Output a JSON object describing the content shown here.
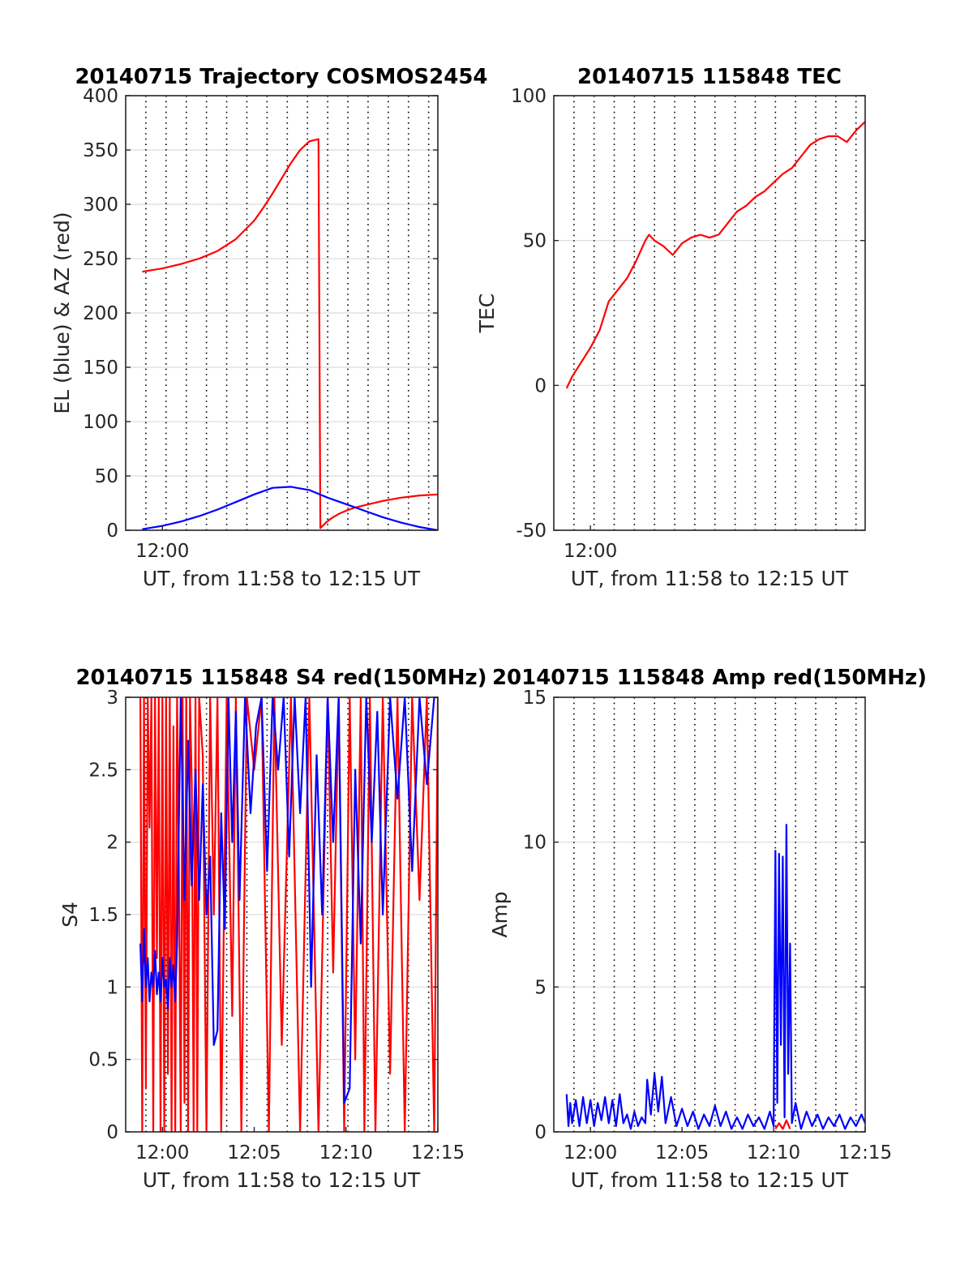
{
  "figure": {
    "colors": {
      "blue": "#0000ff",
      "red": "#ff0000",
      "axis": "#262626",
      "grid": "#dcdcdc",
      "vgrid": "#000000"
    }
  },
  "chart_data": [
    {
      "type": "line",
      "title": "20140715 Trajectory COSMOS2454",
      "xlabel": "UT, from 11:58 to 12:15 UT",
      "ylabel": "EL (blue) & AZ (red)",
      "x_unit": "minutes after 11:58 UT",
      "xlim": [
        0,
        17
      ],
      "ylim": [
        0,
        400
      ],
      "yticks": [
        0,
        50,
        100,
        150,
        200,
        250,
        300,
        350,
        400
      ],
      "xticks": [
        {
          "x": 2,
          "label": "12:00"
        }
      ],
      "minor_x": [
        1.1,
        2.2,
        3.3,
        4.4,
        5.5,
        6.6,
        7.7,
        8.8,
        9.9,
        11.0,
        12.1,
        13.2,
        14.3,
        15.4,
        16.5
      ],
      "series": [
        {
          "name": "AZ (red)",
          "color": "#ff0000",
          "x": [
            0.9,
            2,
            3,
            4,
            5,
            6,
            7,
            7.5,
            8,
            8.5,
            9,
            9.5,
            10,
            10.5,
            10.6,
            10.9,
            11.2,
            11.6,
            12,
            12.5,
            13,
            14,
            15,
            16,
            17
          ],
          "y": [
            238,
            241,
            245,
            250,
            257,
            268,
            285,
            297,
            310,
            324,
            338,
            350,
            358,
            360,
            2,
            7,
            11,
            15,
            18,
            21,
            23,
            27,
            30,
            32,
            33
          ]
        },
        {
          "name": "EL (blue)",
          "color": "#0000ff",
          "x": [
            0.9,
            2,
            3,
            4,
            5,
            6,
            7,
            8,
            9,
            10,
            11,
            12,
            13,
            14,
            15,
            16,
            17
          ],
          "y": [
            1,
            4,
            8,
            13,
            19,
            26,
            33,
            39,
            40,
            37,
            30,
            24,
            18,
            12,
            7,
            3,
            0
          ]
        }
      ]
    },
    {
      "type": "line",
      "title": "20140715 115848 TEC",
      "xlabel": "UT, from 11:58 to 12:15 UT",
      "ylabel": "TEC",
      "x_unit": "minutes after 11:58 UT",
      "xlim": [
        0,
        17
      ],
      "ylim": [
        -50,
        100
      ],
      "yticks": [
        -50,
        0,
        50,
        100
      ],
      "xticks": [
        {
          "x": 2,
          "label": "12:00"
        }
      ],
      "minor_x": [
        1.1,
        2.2,
        3.3,
        4.4,
        5.5,
        6.6,
        7.7,
        8.8,
        9.9,
        11.0,
        12.1,
        13.2,
        14.3,
        15.4,
        16.5
      ],
      "series": [
        {
          "name": "TEC",
          "color": "#ff0000",
          "x": [
            0.7,
            1.0,
            1.5,
            2.0,
            2.5,
            3.0,
            3.5,
            4.0,
            4.5,
            5.0,
            5.2,
            5.5,
            6.0,
            6.5,
            7.0,
            7.5,
            8.0,
            8.5,
            9.0,
            9.5,
            10.0,
            10.5,
            11.0,
            11.5,
            12.0,
            12.5,
            13.0,
            13.5,
            14.0,
            14.5,
            15.0,
            15.5,
            16.0,
            16.5,
            17.0
          ],
          "y": [
            -1,
            3,
            8,
            13,
            19,
            29,
            33,
            37,
            43,
            50,
            52,
            50,
            48,
            45,
            49,
            51,
            52,
            51,
            52,
            56,
            60,
            62,
            65,
            67,
            70,
            73,
            75,
            79,
            83,
            85,
            86,
            86,
            84,
            88,
            91
          ]
        }
      ]
    },
    {
      "type": "line",
      "title": "20140715 115848 S4 red(150MHz)",
      "xlabel": "UT, from 11:58 to 12:15 UT",
      "ylabel": "S4",
      "x_unit": "minutes after 11:58 UT",
      "xlim": [
        0,
        17
      ],
      "ylim": [
        0,
        3
      ],
      "yticks": [
        0,
        0.5,
        1,
        1.5,
        2,
        2.5,
        3
      ],
      "xticks": [
        {
          "x": 2,
          "label": "12:00"
        },
        {
          "x": 7,
          "label": "12:05"
        },
        {
          "x": 12,
          "label": "12:10"
        },
        {
          "x": 17,
          "label": "12:15"
        }
      ],
      "minor_x": [
        1.1,
        2.2,
        3.3,
        4.4,
        5.5,
        6.6,
        7.7,
        8.8,
        9.9,
        11.0,
        12.1,
        13.2,
        14.3,
        15.4,
        16.5
      ],
      "series": [
        {
          "name": "red",
          "color": "#ff0000",
          "x": [
            0.8,
            0.9,
            1.0,
            1.1,
            1.2,
            1.3,
            1.4,
            1.5,
            1.6,
            1.7,
            1.8,
            1.9,
            2.0,
            2.1,
            2.2,
            2.3,
            2.4,
            2.5,
            2.6,
            2.7,
            2.8,
            2.9,
            3.0,
            3.1,
            3.2,
            3.3,
            3.4,
            3.5,
            3.6,
            3.7,
            3.8,
            3.9,
            4.0,
            4.2,
            4.4,
            4.6,
            4.8,
            5.0,
            5.2,
            5.5,
            5.8,
            6.0,
            6.3,
            6.6,
            7.0,
            7.4,
            7.8,
            8.1,
            8.5,
            9.0,
            9.5,
            10.0,
            10.5,
            11.0,
            11.3,
            11.6,
            11.9,
            12.2,
            12.5,
            12.8,
            13.0,
            13.3,
            13.6,
            14.0,
            14.4,
            14.8,
            15.2,
            15.6,
            16.0,
            16.4,
            16.8,
            17.0
          ],
          "y": [
            3,
            0,
            3,
            0.3,
            3,
            2.1,
            3,
            0,
            3,
            1.2,
            3,
            0,
            3,
            0,
            3,
            0.4,
            3,
            0,
            2.8,
            0,
            3,
            1.8,
            0,
            3,
            0.2,
            3,
            0,
            3,
            2.4,
            0,
            3,
            0,
            3,
            2.6,
            0,
            3,
            1.5,
            3,
            0,
            3,
            0.8,
            3,
            0,
            3,
            2.5,
            3,
            0,
            3,
            0.6,
            3,
            0,
            3,
            0,
            3,
            1.1,
            3,
            0,
            3,
            0.5,
            3,
            0,
            3,
            0,
            3,
            0.4,
            3,
            0,
            3,
            1.6,
            3,
            0,
            3
          ]
        },
        {
          "name": "blue",
          "color": "#0000ff",
          "x": [
            0.8,
            0.9,
            1.0,
            1.1,
            1.2,
            1.3,
            1.4,
            1.5,
            1.6,
            1.7,
            1.8,
            1.9,
            2.0,
            2.1,
            2.2,
            2.3,
            2.4,
            2.5,
            2.6,
            2.7,
            2.8,
            3.0,
            3.2,
            3.4,
            3.6,
            3.8,
            4.0,
            4.2,
            4.4,
            4.6,
            4.8,
            5.0,
            5.2,
            5.4,
            5.6,
            5.8,
            6.0,
            6.2,
            6.5,
            6.8,
            7.1,
            7.4,
            7.7,
            8.0,
            8.3,
            8.6,
            8.9,
            9.2,
            9.5,
            9.8,
            10.1,
            10.4,
            10.7,
            11.0,
            11.3,
            11.6,
            11.9,
            12.2,
            12.5,
            12.8,
            13.1,
            13.4,
            13.7,
            14.0,
            14.4,
            14.8,
            15.2,
            15.6,
            16.0,
            16.4,
            16.8,
            17.0
          ],
          "y": [
            1.3,
            0.9,
            1.4,
            1.0,
            1.2,
            0.9,
            1.1,
            1.0,
            1.25,
            0.95,
            1.1,
            0.9,
            1.2,
            1.0,
            1.05,
            0.85,
            1.2,
            1.0,
            1.15,
            0.9,
            1.3,
            3.0,
            1.6,
            2.7,
            1.7,
            2.5,
            1.6,
            2.4,
            1.5,
            1.9,
            0.6,
            0.7,
            2.2,
            1.4,
            3.0,
            2.0,
            2.9,
            1.6,
            3.0,
            2.2,
            2.8,
            3.0,
            1.8,
            3.0,
            2.5,
            3.0,
            1.9,
            3.0,
            2.2,
            3.0,
            1.0,
            2.6,
            1.5,
            3.0,
            2.0,
            3.0,
            0.2,
            0.3,
            2.5,
            1.3,
            3.0,
            2.0,
            2.9,
            1.5,
            3.0,
            2.3,
            3.0,
            1.8,
            3.0,
            2.4,
            3.0,
            3.0
          ]
        }
      ]
    },
    {
      "type": "line",
      "title": "20140715 115848 Amp red(150MHz)",
      "xlabel": "UT, from 11:58 to 12:15 UT",
      "ylabel": "Amp",
      "x_unit": "minutes after 11:58 UT",
      "xlim": [
        0,
        17
      ],
      "ylim": [
        0,
        15
      ],
      "yticks": [
        0,
        5,
        10,
        15
      ],
      "xticks": [
        {
          "x": 2,
          "label": "12:00"
        },
        {
          "x": 7,
          "label": "12:05"
        },
        {
          "x": 12,
          "label": "12:10"
        },
        {
          "x": 17,
          "label": "12:15"
        }
      ],
      "minor_x": [
        1.1,
        2.2,
        3.3,
        4.4,
        5.5,
        6.6,
        7.7,
        8.8,
        9.9,
        11.0,
        12.1,
        13.2,
        14.3,
        15.4,
        16.5
      ],
      "series": [
        {
          "name": "red",
          "color": "#ff0000",
          "x": [
            12.1,
            12.3,
            12.5,
            12.7,
            12.9
          ],
          "y": [
            0.1,
            0.3,
            0.1,
            0.4,
            0.1
          ]
        },
        {
          "name": "blue",
          "color": "#0000ff",
          "x": [
            0.7,
            0.8,
            0.9,
            1.0,
            1.2,
            1.4,
            1.6,
            1.8,
            2.0,
            2.2,
            2.4,
            2.6,
            2.8,
            3.0,
            3.2,
            3.4,
            3.6,
            3.8,
            4.0,
            4.2,
            4.4,
            4.6,
            4.8,
            5.0,
            5.1,
            5.3,
            5.5,
            5.7,
            5.9,
            6.1,
            6.4,
            6.7,
            7.0,
            7.3,
            7.6,
            7.9,
            8.2,
            8.5,
            8.8,
            9.1,
            9.4,
            9.7,
            10.0,
            10.3,
            10.6,
            10.9,
            11.2,
            11.5,
            11.8,
            12.0,
            12.1,
            12.2,
            12.3,
            12.4,
            12.5,
            12.6,
            12.7,
            12.8,
            12.9,
            13.0,
            13.2,
            13.5,
            13.8,
            14.1,
            14.4,
            14.7,
            15.0,
            15.3,
            15.6,
            15.9,
            16.2,
            16.5,
            16.8,
            17.0
          ],
          "y": [
            1.3,
            0.2,
            1.0,
            0.3,
            1.1,
            0.2,
            1.2,
            0.3,
            1.1,
            0.2,
            1.0,
            0.4,
            1.2,
            0.3,
            1.1,
            0.2,
            1.3,
            0.3,
            0.6,
            0.1,
            0.7,
            0.2,
            0.5,
            0.3,
            1.8,
            0.6,
            2.0,
            0.7,
            1.9,
            0.3,
            1.2,
            0.2,
            0.8,
            0.2,
            0.7,
            0.1,
            0.6,
            0.2,
            0.9,
            0.2,
            0.7,
            0.1,
            0.5,
            0.1,
            0.6,
            0.2,
            0.5,
            0.1,
            0.7,
            0.2,
            9.7,
            1.0,
            9.6,
            3.0,
            9.5,
            0.5,
            10.6,
            2.0,
            6.5,
            0.3,
            1.0,
            0.1,
            0.7,
            0.2,
            0.6,
            0.1,
            0.5,
            0.2,
            0.6,
            0.1,
            0.5,
            0.2,
            0.6,
            0.3
          ]
        }
      ]
    }
  ]
}
